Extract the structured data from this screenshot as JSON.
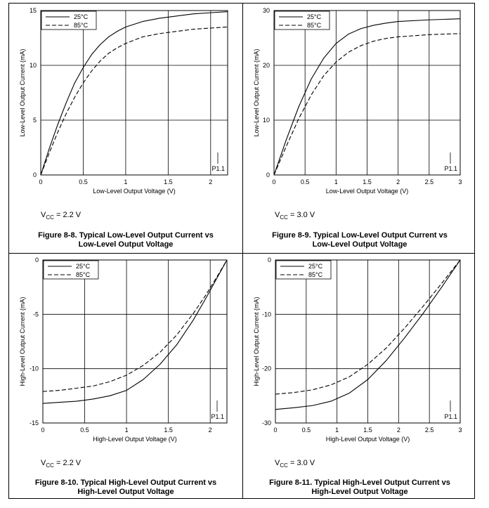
{
  "chart_data": [
    {
      "type": "line",
      "ylabel": "Low-Level Output Current (mA)",
      "xlabel": "Low-Level Output Voltage (V)",
      "xlim": [
        0,
        2.2
      ],
      "ylim": [
        0,
        15
      ],
      "xticks": [
        0,
        0.5,
        1,
        1.5,
        2
      ],
      "yticks": [
        0,
        5,
        10,
        15
      ],
      "xtick_labels": [
        "0",
        "0.5",
        "1",
        "1.5",
        "2"
      ],
      "ytick_labels": [
        "0",
        "5",
        "10",
        "15"
      ],
      "grid": true,
      "legend_position": "top-left",
      "annotation": "P1.1",
      "series": [
        {
          "name": "25°C",
          "style": "solid",
          "x": [
            0,
            0.1,
            0.2,
            0.3,
            0.4,
            0.5,
            0.6,
            0.7,
            0.8,
            0.9,
            1.0,
            1.2,
            1.4,
            1.6,
            1.8,
            2.0,
            2.2
          ],
          "y": [
            0,
            2.4,
            4.6,
            6.6,
            8.4,
            9.8,
            11.0,
            11.9,
            12.6,
            13.1,
            13.5,
            14.0,
            14.3,
            14.5,
            14.7,
            14.8,
            14.9
          ]
        },
        {
          "name": "85°C",
          "style": "dashed",
          "x": [
            0,
            0.1,
            0.2,
            0.3,
            0.4,
            0.5,
            0.6,
            0.7,
            0.8,
            0.9,
            1.0,
            1.2,
            1.4,
            1.6,
            1.8,
            2.0,
            2.2
          ],
          "y": [
            0,
            2.0,
            3.9,
            5.6,
            7.1,
            8.4,
            9.5,
            10.4,
            11.1,
            11.6,
            12.0,
            12.6,
            12.9,
            13.1,
            13.3,
            13.4,
            13.5
          ]
        }
      ],
      "vcc_label": "V",
      "vcc_sub": "CC",
      "vcc_value": " = 2.2 V",
      "caption_line1": "Figure 8-8. Typical Low-Level Output Current vs",
      "caption_line2": "Low-Level Output Voltage"
    },
    {
      "type": "line",
      "ylabel": "Low-Level Output Current (mA)",
      "xlabel": "Low-Level Output Voltage (V)",
      "xlim": [
        0,
        3
      ],
      "ylim": [
        0,
        30
      ],
      "xticks": [
        0,
        0.5,
        1,
        1.5,
        2,
        2.5,
        3
      ],
      "yticks": [
        0,
        10,
        20,
        30
      ],
      "xtick_labels": [
        "0",
        "0.5",
        "1",
        "1.5",
        "2",
        "2.5",
        "3"
      ],
      "ytick_labels": [
        "0",
        "10",
        "20",
        "30"
      ],
      "grid": true,
      "legend_position": "top-left",
      "annotation": "P1.1",
      "series": [
        {
          "name": "25°C",
          "style": "solid",
          "x": [
            0,
            0.2,
            0.4,
            0.6,
            0.8,
            1.0,
            1.2,
            1.4,
            1.6,
            1.8,
            2.0,
            2.5,
            3.0
          ],
          "y": [
            0,
            6.5,
            12.5,
            17.5,
            21.3,
            24.0,
            25.7,
            26.7,
            27.3,
            27.7,
            28.0,
            28.3,
            28.5
          ]
        },
        {
          "name": "85°C",
          "style": "dashed",
          "x": [
            0,
            0.2,
            0.4,
            0.6,
            0.8,
            1.0,
            1.2,
            1.4,
            1.6,
            1.8,
            2.0,
            2.5,
            3.0
          ],
          "y": [
            0,
            5.3,
            10.3,
            14.6,
            18.1,
            20.6,
            22.4,
            23.6,
            24.4,
            24.9,
            25.2,
            25.6,
            25.8
          ]
        }
      ],
      "vcc_label": "V",
      "vcc_sub": "CC",
      "vcc_value": " = 3.0 V",
      "caption_line1": "Figure 8-9. Typical Low-Level Output Current vs",
      "caption_line2": "Low-Level Output Voltage"
    },
    {
      "type": "line",
      "ylabel": "High-Level Output Current (mA)",
      "xlabel": "High-Level Output Voltage (V)",
      "xlim": [
        0,
        2.2
      ],
      "ylim": [
        -15,
        0
      ],
      "xticks": [
        0,
        0.5,
        1,
        1.5,
        2
      ],
      "yticks": [
        0,
        -5,
        -10,
        -15
      ],
      "xtick_labels": [
        "0",
        "0.5",
        "1",
        "1.5",
        "2"
      ],
      "ytick_labels": [
        "0",
        "-5",
        "-10",
        "-15"
      ],
      "grid": true,
      "legend_position": "top-left",
      "annotation": "P1.1",
      "series": [
        {
          "name": "25°C",
          "style": "solid",
          "x": [
            0,
            0.2,
            0.4,
            0.6,
            0.8,
            1.0,
            1.2,
            1.4,
            1.6,
            1.8,
            1.95,
            2.1,
            2.2
          ],
          "y": [
            -13.2,
            -13.1,
            -13.0,
            -12.8,
            -12.5,
            -12.0,
            -11.0,
            -9.6,
            -7.8,
            -5.5,
            -3.5,
            -1.4,
            0
          ]
        },
        {
          "name": "85°C",
          "style": "dashed",
          "x": [
            0,
            0.2,
            0.4,
            0.6,
            0.8,
            1.0,
            1.2,
            1.4,
            1.6,
            1.8,
            1.95,
            2.1,
            2.2
          ],
          "y": [
            -12.1,
            -12.0,
            -11.8,
            -11.6,
            -11.2,
            -10.6,
            -9.7,
            -8.5,
            -6.9,
            -4.9,
            -3.2,
            -1.3,
            0
          ]
        }
      ],
      "vcc_label": "V",
      "vcc_sub": "CC",
      "vcc_value": " = 2.2 V",
      "caption_line1": "Figure 8-10. Typical High-Level Output Current vs",
      "caption_line2": "High-Level Output Voltage"
    },
    {
      "type": "line",
      "ylabel": "High-Level Output Current (mA)",
      "xlabel": "High-Level Output Voltage (V)",
      "xlim": [
        0,
        3
      ],
      "ylim": [
        -30,
        0
      ],
      "xticks": [
        0,
        0.5,
        1,
        1.5,
        2,
        2.5,
        3
      ],
      "yticks": [
        0,
        -10,
        -20,
        -30
      ],
      "xtick_labels": [
        "0",
        "0.5",
        "1",
        "1.5",
        "2",
        "2.5",
        "3"
      ],
      "ytick_labels": [
        "0",
        "-10",
        "-20",
        "-30"
      ],
      "grid": true,
      "legend_position": "top-left",
      "annotation": "P1.1",
      "series": [
        {
          "name": "25°C",
          "style": "solid",
          "x": [
            0,
            0.3,
            0.6,
            0.9,
            1.2,
            1.5,
            1.8,
            2.1,
            2.4,
            2.7,
            3.0
          ],
          "y": [
            -27.5,
            -27.2,
            -26.8,
            -26.0,
            -24.5,
            -22.0,
            -18.5,
            -14.3,
            -9.8,
            -5.0,
            0
          ]
        },
        {
          "name": "85°C",
          "style": "dashed",
          "x": [
            0,
            0.3,
            0.6,
            0.9,
            1.2,
            1.5,
            1.8,
            2.1,
            2.4,
            2.7,
            3.0
          ],
          "y": [
            -24.7,
            -24.4,
            -23.9,
            -23.0,
            -21.5,
            -19.2,
            -16.2,
            -12.5,
            -8.5,
            -4.3,
            0
          ]
        }
      ],
      "vcc_label": "V",
      "vcc_sub": "CC",
      "vcc_value": " = 3.0 V",
      "caption_line1": "Figure 8-11. Typical High-Level Output Current vs",
      "caption_line2": "High-Level Output Voltage"
    }
  ]
}
